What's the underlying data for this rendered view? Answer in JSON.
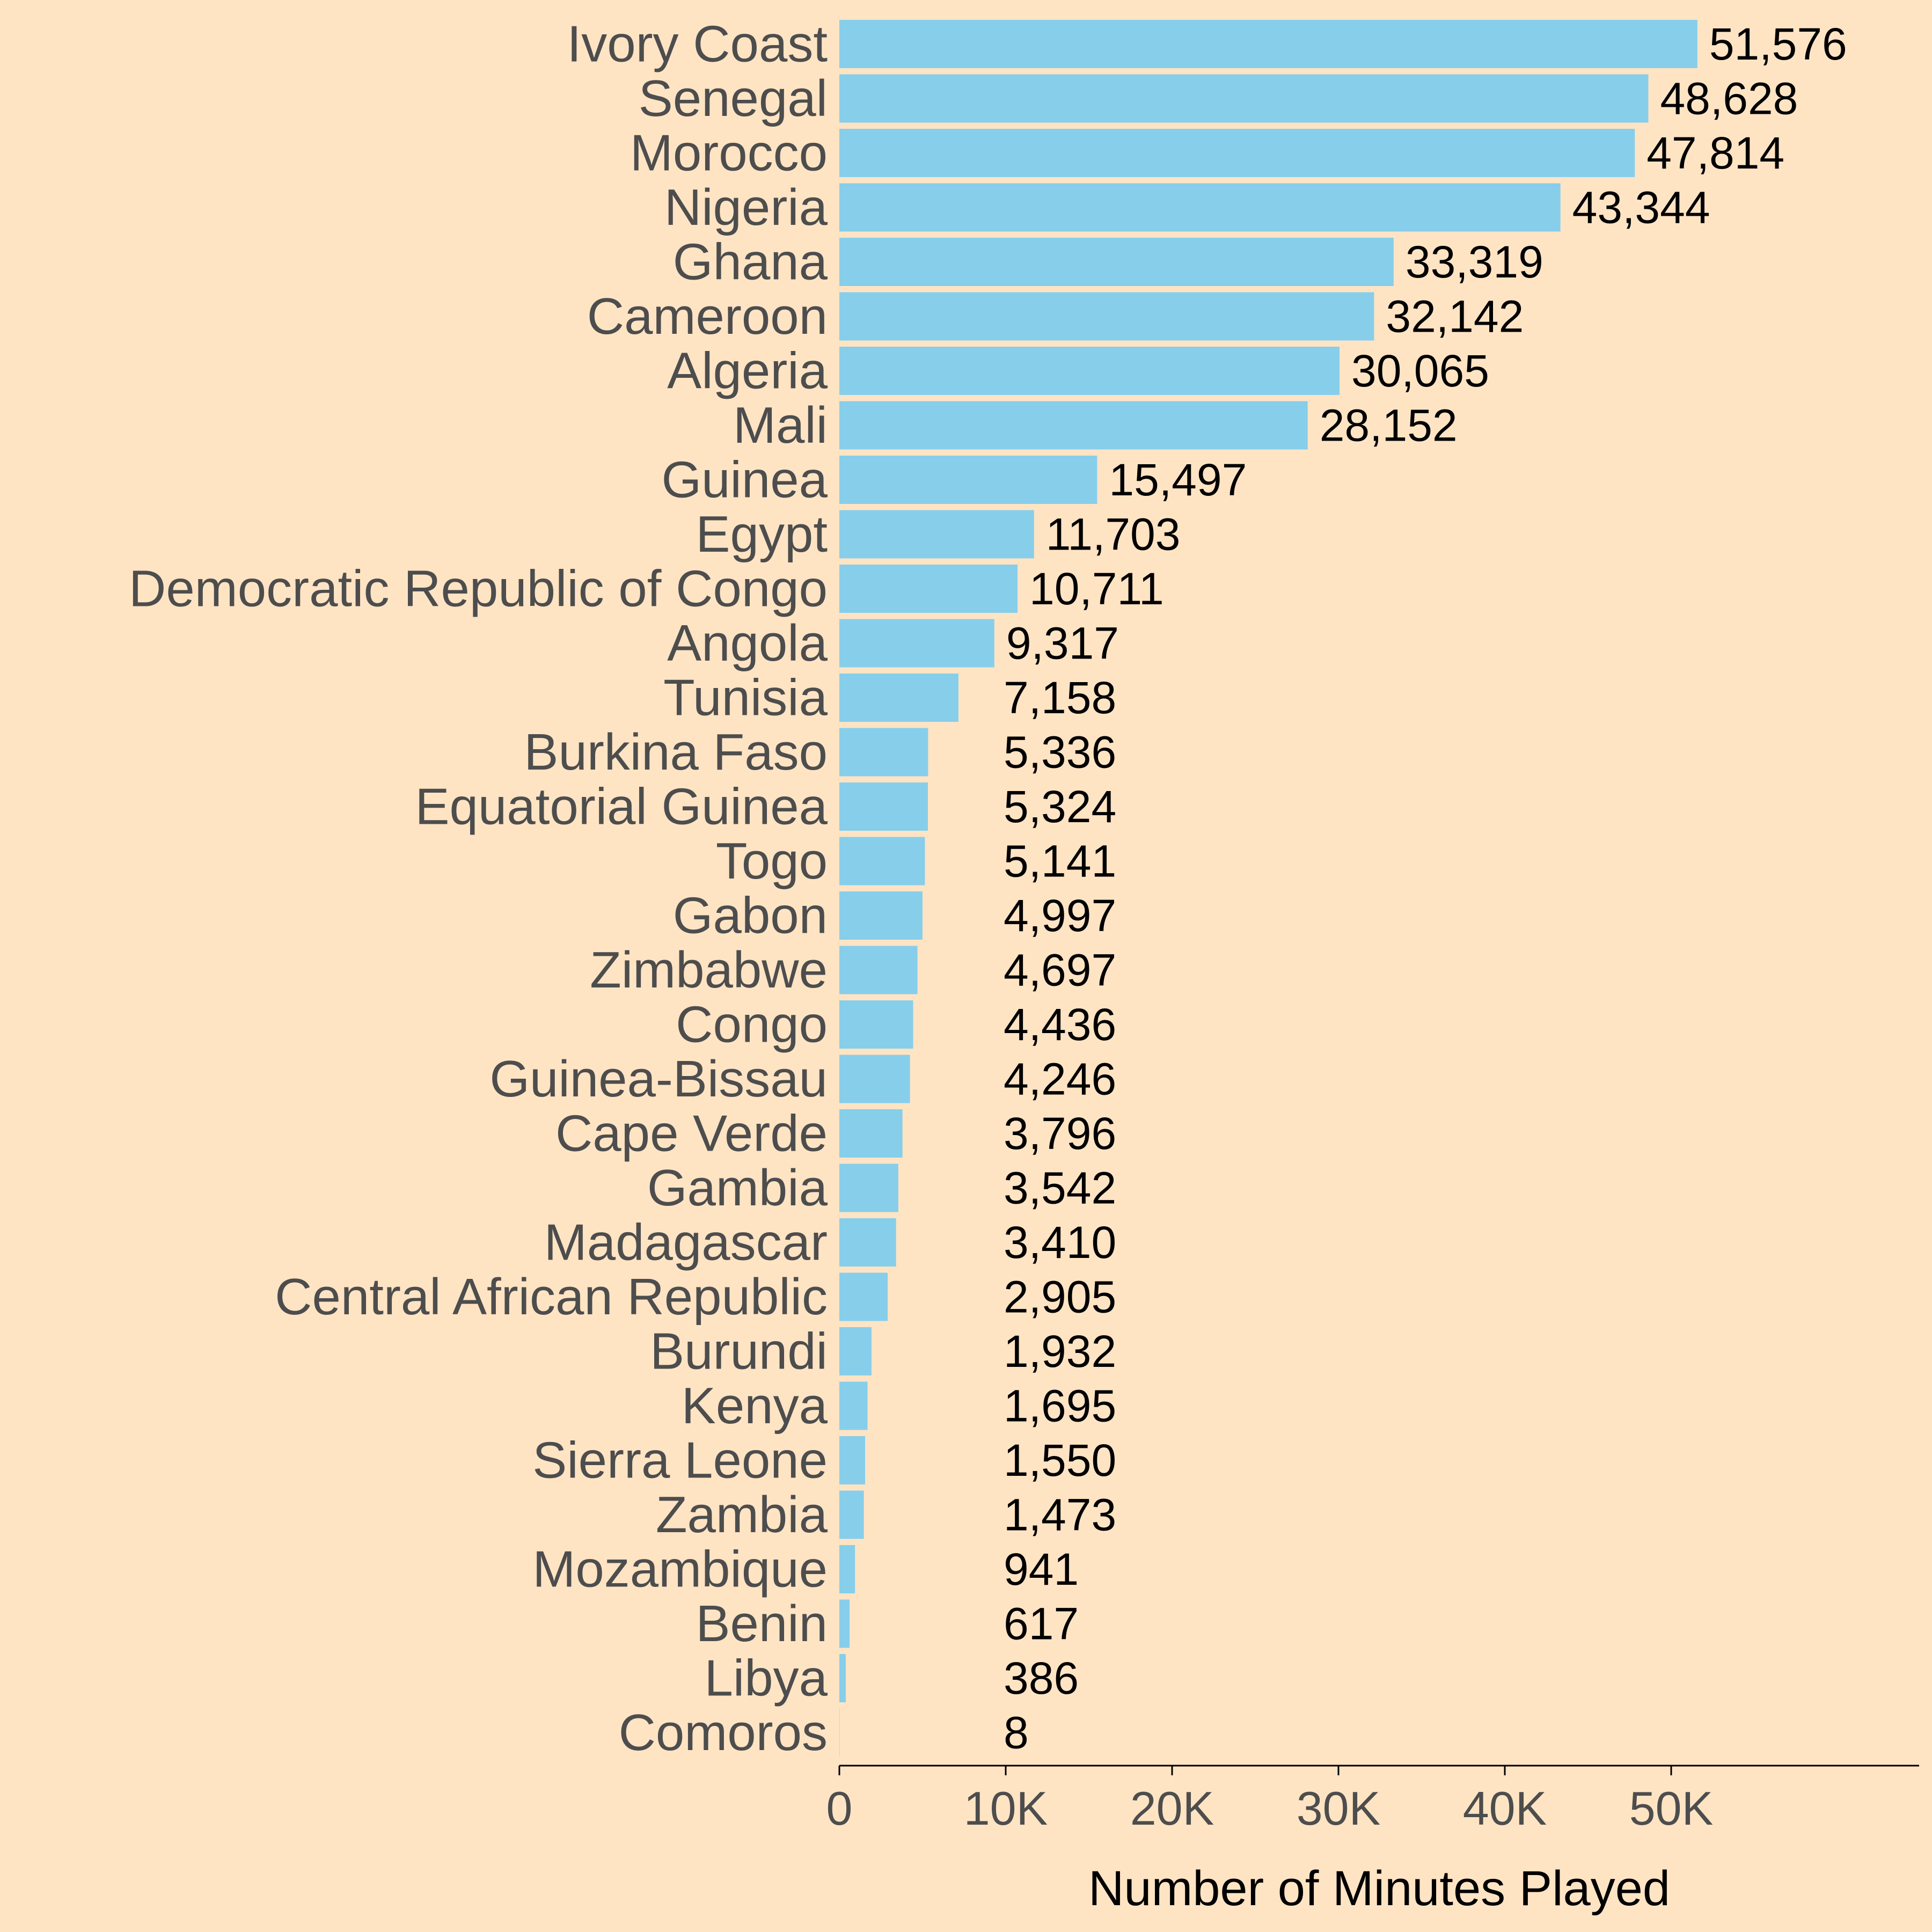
{
  "chart_data": {
    "type": "bar",
    "orientation": "horizontal",
    "title": "",
    "xlabel": "Number of Minutes Played",
    "ylabel": "",
    "xlim": [
      0,
      65000
    ],
    "xticks": [
      {
        "value": 0,
        "label": "0"
      },
      {
        "value": 10000,
        "label": "10K"
      },
      {
        "value": 20000,
        "label": "20K"
      },
      {
        "value": 30000,
        "label": "30K"
      },
      {
        "value": 40000,
        "label": "40K"
      },
      {
        "value": 50000,
        "label": "50K"
      }
    ],
    "grid": false,
    "bar_color": "#87CEEB",
    "background_color": "#FFE4C4",
    "categories": [
      "Ivory Coast",
      "Senegal",
      "Morocco",
      "Nigeria",
      "Ghana",
      "Cameroon",
      "Algeria",
      "Mali",
      "Guinea",
      "Egypt",
      "Democratic Republic of Congo",
      "Angola",
      "Tunisia",
      "Burkina Faso",
      "Equatorial Guinea",
      "Togo",
      "Gabon",
      "Zimbabwe",
      "Congo",
      "Guinea-Bissau",
      "Cape Verde",
      "Gambia",
      "Madagascar",
      "Central African Republic",
      "Burundi",
      "Kenya",
      "Sierra Leone",
      "Zambia",
      "Mozambique",
      "Benin",
      "Libya",
      "Comoros"
    ],
    "values": [
      51576,
      48628,
      47814,
      43344,
      33319,
      32142,
      30065,
      28152,
      15497,
      11703,
      10711,
      9317,
      7158,
      5336,
      5324,
      5141,
      4997,
      4697,
      4436,
      4246,
      3796,
      3542,
      3410,
      2905,
      1932,
      1695,
      1550,
      1473,
      941,
      617,
      386,
      8
    ],
    "value_labels": [
      "51,576",
      "48,628",
      "47,814",
      "43,344",
      "33,319",
      "32,142",
      "30,065",
      "28,152",
      "15,497",
      "11,703",
      "10,711",
      "9,317",
      "7,158",
      "5,336",
      "5,324",
      "5,141",
      "4,997",
      "4,697",
      "4,436",
      "4,246",
      "3,796",
      "3,542",
      "3,410",
      "2,905",
      "1,932",
      "1,695",
      "1,550",
      "1,473",
      "941",
      "617",
      "386",
      "8"
    ]
  }
}
